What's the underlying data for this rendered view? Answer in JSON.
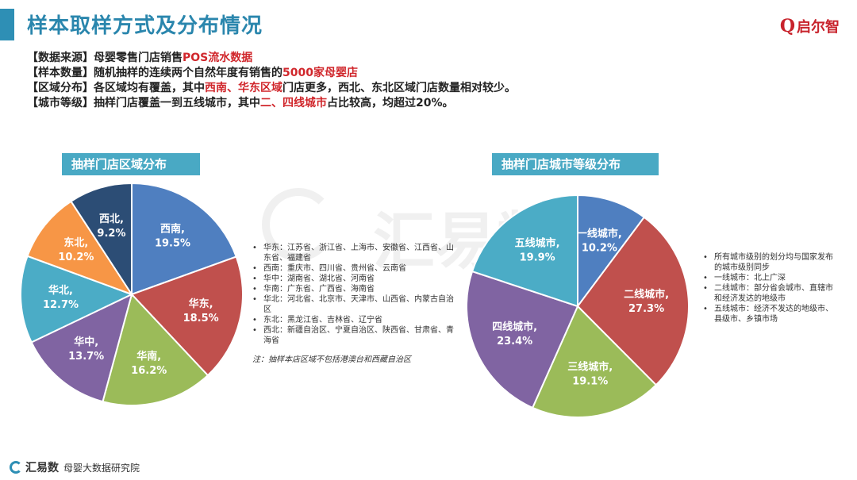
{
  "header": {
    "title": "样本取样方式及分布情况",
    "logo_mark": "Q",
    "logo_text": "启尔智"
  },
  "info": [
    {
      "label": "【数据来源】",
      "parts": [
        {
          "t": "母婴零售门店销售",
          "r": false
        },
        {
          "t": "POS流水数据",
          "r": true
        }
      ]
    },
    {
      "label": "【样本数量】",
      "parts": [
        {
          "t": "随机抽样的连续两个自然年度有销售的",
          "r": false
        },
        {
          "t": "5000家母婴店",
          "r": true
        }
      ]
    },
    {
      "label": "【区域分布】",
      "parts": [
        {
          "t": "各区域均有覆盖，其中",
          "r": false
        },
        {
          "t": "西南、华东区域",
          "r": true
        },
        {
          "t": "门店更多，西北、东北区域门店数量相对较少。",
          "r": false
        }
      ]
    },
    {
      "label": "【城市等级】",
      "parts": [
        {
          "t": "抽样门店覆盖一到五线城市，其中",
          "r": false
        },
        {
          "t": "二、四线城市",
          "r": true
        },
        {
          "t": "占比较高，均超过20%。",
          "r": false
        }
      ]
    }
  ],
  "colors": {
    "accent": "#2a86ad",
    "highlight": "#d0262b",
    "label_bg": "#49a9c4"
  },
  "chart_data": [
    {
      "type": "pie",
      "title": "抽样门店区域分布",
      "slices": [
        {
          "name": "西南",
          "value": 19.5,
          "label": "19.5%",
          "color": "#4f7fc0"
        },
        {
          "name": "华东",
          "value": 18.5,
          "label": "18.5%",
          "color": "#c0504d"
        },
        {
          "name": "华南",
          "value": 16.2,
          "label": "16.2%",
          "color": "#9bbb59"
        },
        {
          "name": "华中",
          "value": 13.7,
          "label": "13.7%",
          "color": "#8064a2"
        },
        {
          "name": "华北",
          "value": 12.7,
          "label": "12.7%",
          "color": "#4bacc6"
        },
        {
          "name": "东北",
          "value": 10.2,
          "label": "10.2%",
          "color": "#f79646"
        },
        {
          "name": "西北",
          "value": 9.2,
          "label": "9.2%",
          "color": "#2c4d75"
        }
      ],
      "notes": [
        "华东：江苏省、浙江省、上海市、安徽省、江西省、山东省、福建省",
        "西南：重庆市、四川省、贵州省、云南省",
        "华中：湖南省、湖北省、河南省",
        "华南：广东省、广西省、海南省",
        "华北：河北省、北京市、天津市、山西省、内蒙古自治区",
        "东北：黑龙江省、吉林省、辽宁省",
        "西北：新疆自治区、宁夏自治区、陕西省、甘肃省、青海省"
      ],
      "footnote": "注：抽样本店区域不包括港澳台和西藏自治区"
    },
    {
      "type": "pie",
      "title": "抽样门店城市等级分布",
      "slices": [
        {
          "name": "一线城市",
          "value": 10.2,
          "label": "10.2%",
          "color": "#4f7fc0"
        },
        {
          "name": "二线城市",
          "value": 27.3,
          "label": "27.3%",
          "color": "#c0504d"
        },
        {
          "name": "三线城市",
          "value": 19.1,
          "label": "19.1%",
          "color": "#9bbb59"
        },
        {
          "name": "四线城市",
          "value": 23.4,
          "label": "23.4%",
          "color": "#8064a2"
        },
        {
          "name": "五线城市",
          "value": 19.9,
          "label": "19.9%",
          "color": "#4bacc6"
        }
      ],
      "notes": [
        "所有城市级别的划分均与国家发布的城市级别同步",
        "一线城市：北上广深",
        "二线城市：部分省会城市、直辖市和经济发达的地级市",
        "五线城市：经济不发达的地级市、县级市、乡镇市场"
      ]
    }
  ],
  "watermark": {
    "text": "汇易数"
  },
  "footer": {
    "brand": "汇易数",
    "sub": "母婴大数据研究院"
  }
}
